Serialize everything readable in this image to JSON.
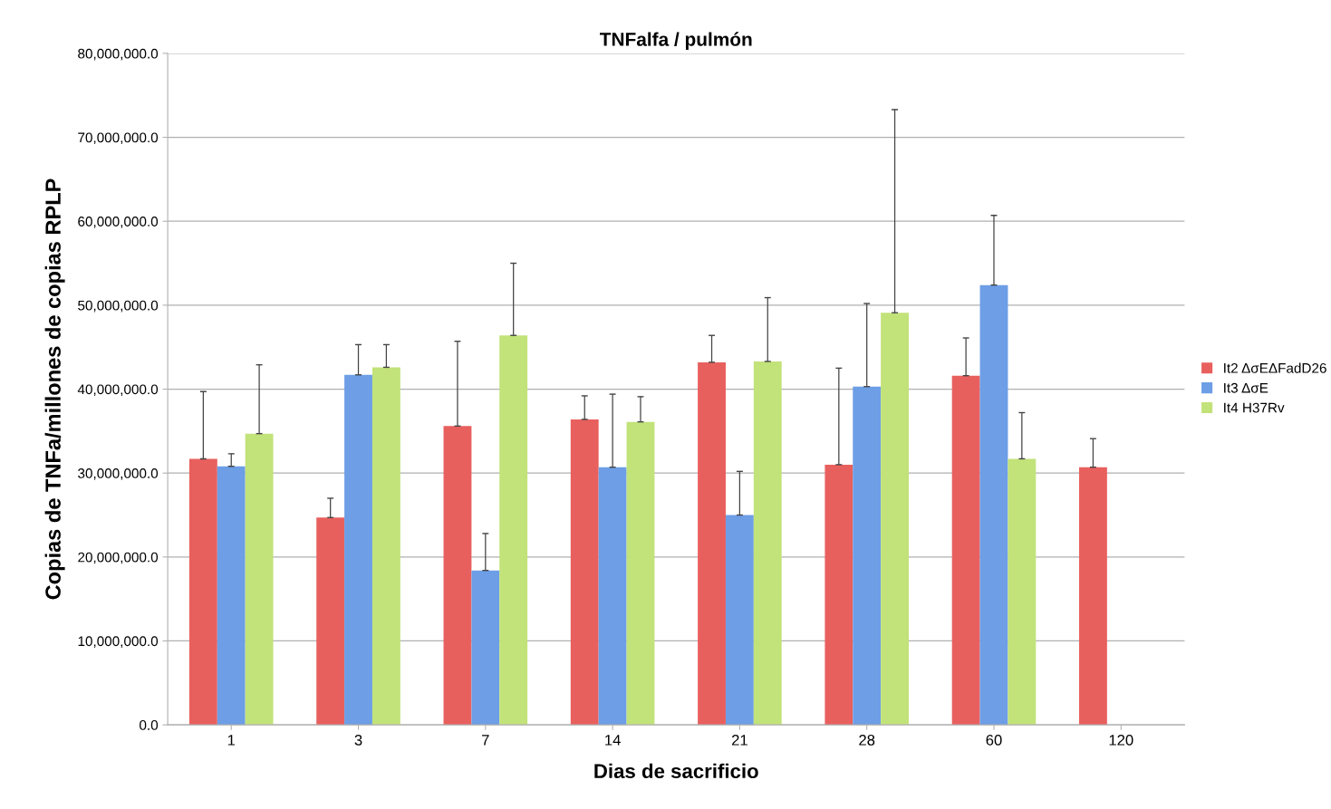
{
  "chart_data": {
    "type": "bar",
    "title": "TNFalfa / pulmón",
    "xlabel": "Dias de sacrificio",
    "ylabel": "Copias de TNFa/millones de copias RPLP",
    "categories": [
      "1",
      "3",
      "7",
      "14",
      "21",
      "28",
      "60",
      "120"
    ],
    "series": [
      {
        "name": "It2 ΔσEΔFadD26",
        "color": "#e8605e",
        "values": [
          31700000,
          24700000,
          35600000,
          36400000,
          43200000,
          31000000,
          41600000,
          30700000
        ],
        "errors": [
          8000000,
          2300000,
          10100000,
          2800000,
          3200000,
          11500000,
          4500000,
          3400000
        ]
      },
      {
        "name": "It3 ΔσE",
        "color": "#6d9ee6",
        "values": [
          30800000,
          41700000,
          18400000,
          30700000,
          25000000,
          40300000,
          52400000,
          null
        ],
        "errors": [
          1500000,
          3600000,
          4400000,
          8700000,
          5200000,
          9900000,
          8300000,
          null
        ]
      },
      {
        "name": "It4 H37Rv",
        "color": "#c2e27a",
        "values": [
          34700000,
          42600000,
          46400000,
          36100000,
          43300000,
          49100000,
          31700000,
          null
        ],
        "errors": [
          8200000,
          2700000,
          8600000,
          3000000,
          7600000,
          24200000,
          5500000,
          null
        ]
      }
    ],
    "ylim": [
      0,
      80000000
    ],
    "yticks": [
      {
        "value": 0,
        "label": "0.0"
      },
      {
        "value": 10000000,
        "label": "10,000,000.0"
      },
      {
        "value": 20000000,
        "label": "20,000,000.0"
      },
      {
        "value": 30000000,
        "label": "30,000,000.0"
      },
      {
        "value": 40000000,
        "label": "40,000,000.0"
      },
      {
        "value": 50000000,
        "label": "50,000,000.0"
      },
      {
        "value": 60000000,
        "label": "60,000,000.0"
      },
      {
        "value": 70000000,
        "label": "70,000,000.0"
      },
      {
        "value": 80000000,
        "label": "80,000,000.0"
      }
    ],
    "grid": "y",
    "legend": "right"
  }
}
